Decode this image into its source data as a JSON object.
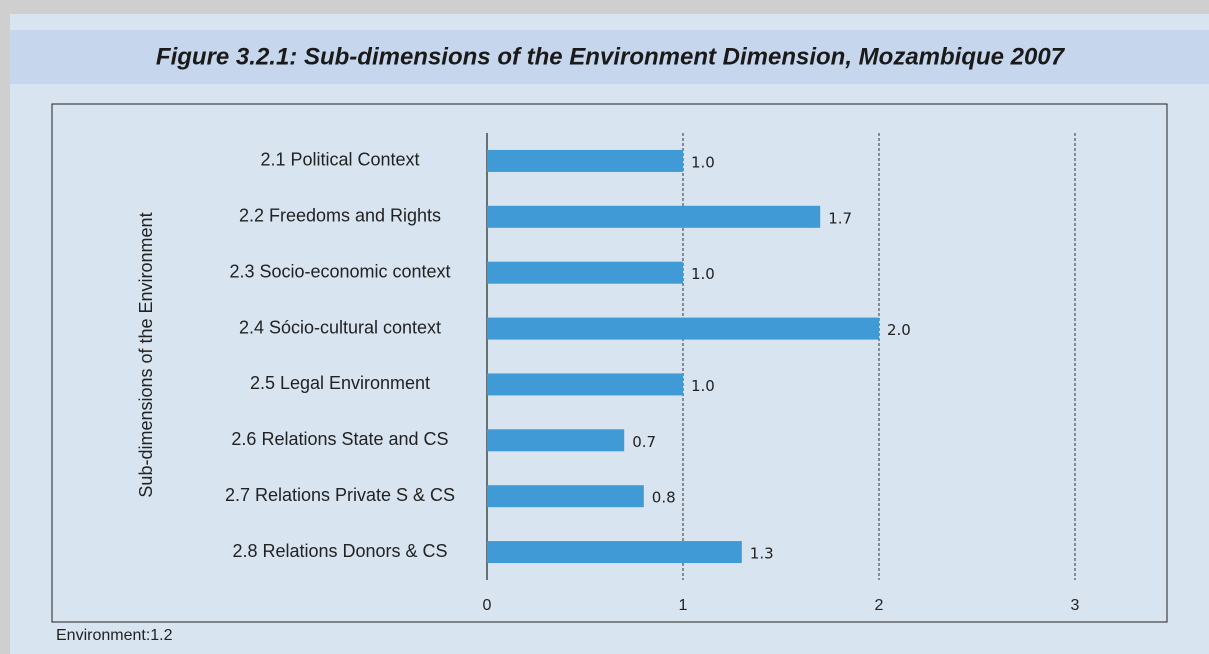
{
  "chart_data": {
    "type": "bar",
    "orientation": "horizontal",
    "title": "Figure 3.2.1: Sub-dimensions of the Environment Dimension, Mozambique 2007",
    "y_label": "Sub-dimensions of the Environment",
    "annotation": "Environment:1.2",
    "categories": [
      "2.1 Political Context",
      "2.2 Freedoms and Rights",
      "2.3 Socio-economic context",
      "2.4 Sócio-cultural context",
      "2.5 Legal Environment",
      "2.6 Relations State and CS",
      "2.7 Relations Private S  & CS",
      "2.8 Relations Donors & CS"
    ],
    "values": [
      1.0,
      1.7,
      1.0,
      2.0,
      1.0,
      0.7,
      0.8,
      1.3
    ],
    "value_labels": [
      "1.0",
      "1.7",
      "1.0",
      "2.0",
      "1.0",
      "0.7",
      "0.8",
      "1.3"
    ],
    "color": "#3f9ad6",
    "xlim": [
      0,
      3
    ],
    "xticks": [
      0,
      1,
      2,
      3
    ],
    "grid": true
  }
}
